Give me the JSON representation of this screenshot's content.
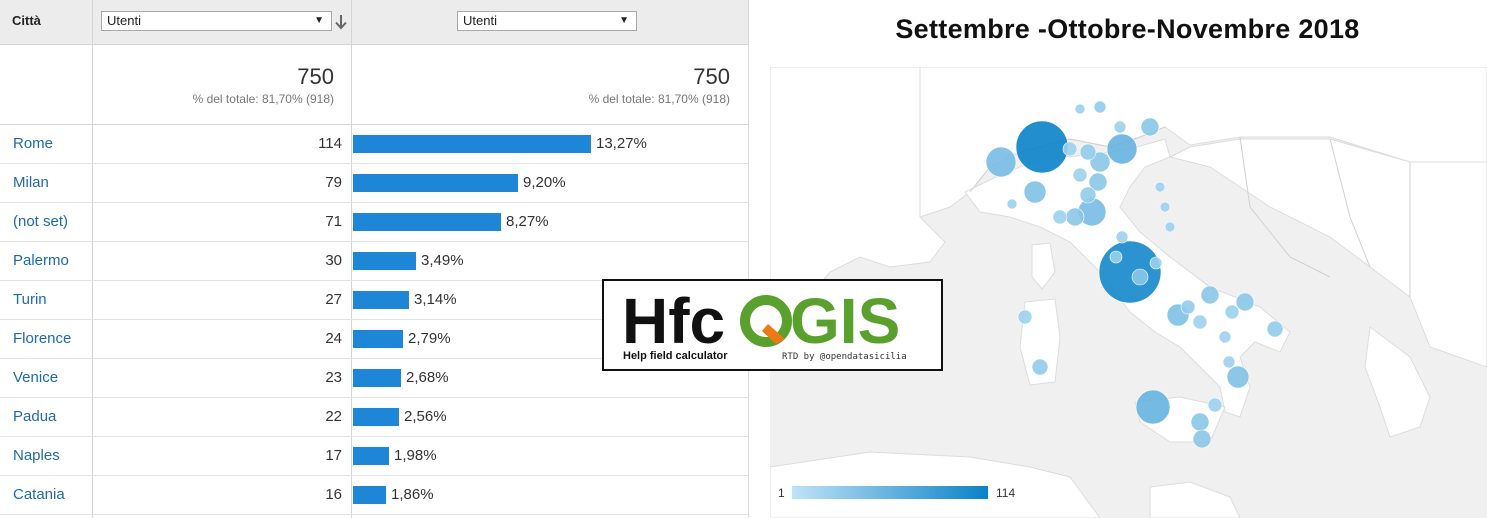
{
  "table": {
    "city_header": "Città",
    "metric_1": {
      "label": "Utenti",
      "total": "750",
      "pct_total": "% del totale: 81,70% (918)"
    },
    "metric_2": {
      "label": "Utenti",
      "total": "750",
      "pct_total": "% del totale: 81,70% (918)"
    },
    "rows": [
      {
        "city": "Rome",
        "users": 114,
        "users_label": "114",
        "pct": 13.27,
        "pct_label": "13,27%"
      },
      {
        "city": "Milan",
        "users": 79,
        "users_label": "79",
        "pct": 9.2,
        "pct_label": "9,20%"
      },
      {
        "city": "(not set)",
        "users": 71,
        "users_label": "71",
        "pct": 8.27,
        "pct_label": "8,27%"
      },
      {
        "city": "Palermo",
        "users": 30,
        "users_label": "30",
        "pct": 3.49,
        "pct_label": "3,49%"
      },
      {
        "city": "Turin",
        "users": 27,
        "users_label": "27",
        "pct": 3.14,
        "pct_label": "3,14%"
      },
      {
        "city": "Florence",
        "users": 24,
        "users_label": "24",
        "pct": 2.79,
        "pct_label": "2,79%"
      },
      {
        "city": "Venice",
        "users": 23,
        "users_label": "23",
        "pct": 2.68,
        "pct_label": "2,68%"
      },
      {
        "city": "Padua",
        "users": 22,
        "users_label": "22",
        "pct": 2.56,
        "pct_label": "2,56%"
      },
      {
        "city": "Naples",
        "users": 17,
        "users_label": "17",
        "pct": 1.98,
        "pct_label": "1,98%"
      },
      {
        "city": "Catania",
        "users": 16,
        "users_label": "16",
        "pct": 1.86,
        "pct_label": "1,86%"
      }
    ]
  },
  "map": {
    "title": "Settembre -Ottobre-Novembre 2018",
    "legend_min": "1",
    "legend_max": "114",
    "colors": {
      "land": "#ffffff",
      "sea": "#f0f0f0",
      "bubble_low": "#bfe3f6",
      "bubble_high": "#0b82c8"
    }
  },
  "logo": {
    "wordmark": "HfcQGIS",
    "tagline": "Help field calculator",
    "credit": "RTD by @opendatasicilia",
    "colors": {
      "hfc": "#111111",
      "qgis": "#5aa02c",
      "accent": "#ee7913"
    }
  },
  "icons": {
    "sort": "arrow-down-icon",
    "dropdown": "caret-down-icon"
  }
}
